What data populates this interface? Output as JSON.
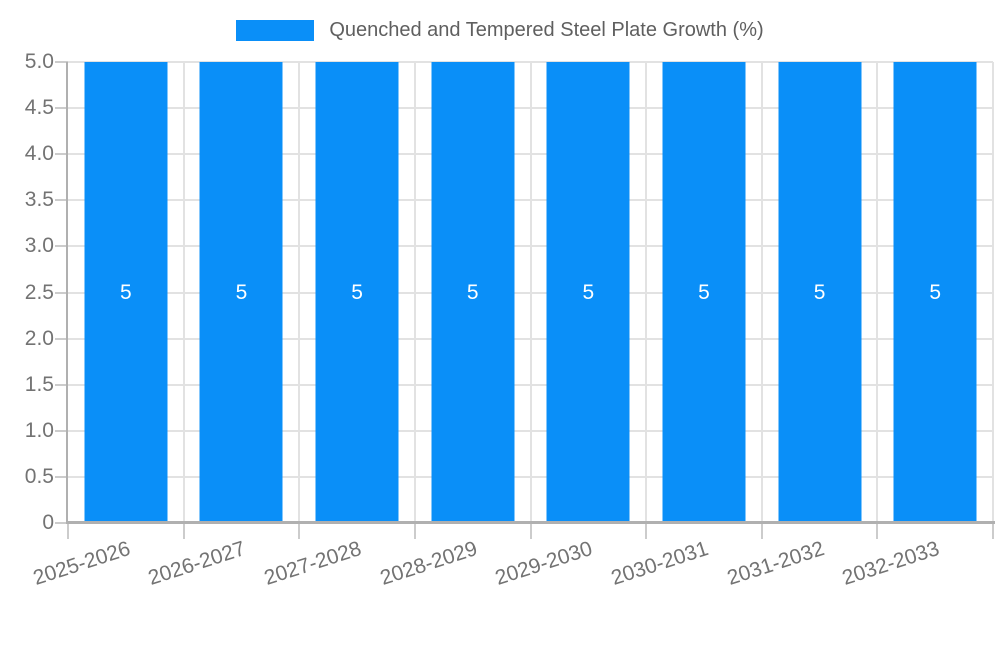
{
  "chart_data": {
    "type": "bar",
    "legend_label": "Quenched and Tempered Steel Plate Growth (%)",
    "legend_position": "top-center",
    "categories": [
      "2025-2026",
      "2026-2027",
      "2027-2028",
      "2028-2029",
      "2029-2030",
      "2030-2031",
      "2031-2032",
      "2032-2033"
    ],
    "values": [
      5,
      5,
      5,
      5,
      5,
      5,
      5,
      5
    ],
    "bar_value_labels": [
      "5",
      "5",
      "5",
      "5",
      "5",
      "5",
      "5",
      "5"
    ],
    "yticks": [
      "5.0",
      "4.5",
      "4.0",
      "3.5",
      "3.0",
      "2.5",
      "2.0",
      "1.5",
      "1.0",
      "0.5",
      "0"
    ],
    "ylim": [
      0,
      5
    ],
    "grid": true,
    "xlabel": "",
    "ylabel": "",
    "colors": {
      "bar": "#0a8ff8",
      "grid": "#e2e2e2",
      "axis": "#b0b0b0",
      "tick": "#cccccc",
      "axis_text": "#737373",
      "legend_text": "#5f5f5f",
      "value_label": "#ffffff",
      "background": "#ffffff"
    }
  }
}
